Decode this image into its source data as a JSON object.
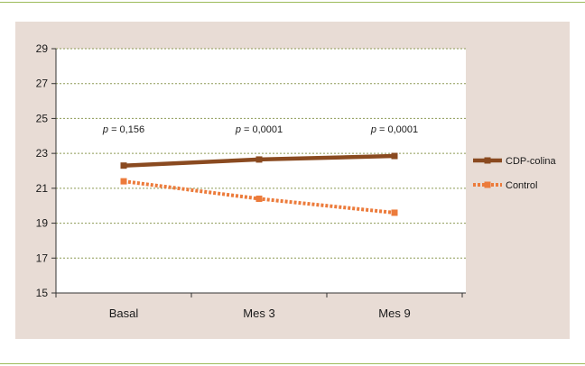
{
  "chart_data": {
    "type": "line",
    "categories": [
      "Basal",
      "Mes 3",
      "Mes 9"
    ],
    "yticks": [
      15,
      17,
      19,
      21,
      23,
      25,
      27,
      29
    ],
    "ylim": [
      15,
      29
    ],
    "grid": true,
    "legend_position": "right",
    "series": [
      {
        "name": "CDP-colina",
        "values": [
          22.3,
          22.65,
          22.85
        ],
        "color": "#8a4a20",
        "style": "solid"
      },
      {
        "name": "Control",
        "values": [
          21.4,
          20.4,
          19.6
        ],
        "color": "#ec7b3b",
        "style": "dotted"
      }
    ],
    "annotations": [
      {
        "italic": "p",
        "text": " = 0,156",
        "category": "Basal"
      },
      {
        "italic": "p",
        "text": " = 0,0001",
        "category": "Mes 3"
      },
      {
        "italic": "p",
        "text": " = 0,0001",
        "category": "Mes 9"
      }
    ]
  }
}
